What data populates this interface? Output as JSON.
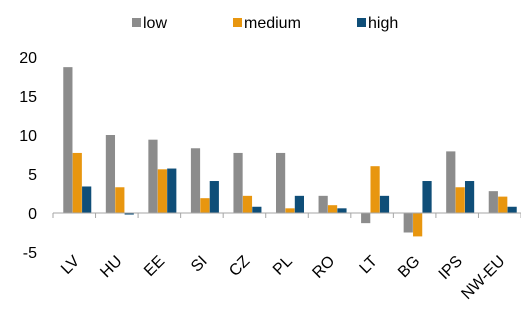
{
  "chart_data": {
    "type": "bar",
    "categories": [
      "LV",
      "HU",
      "EE",
      "SI",
      "CZ",
      "PL",
      "RO",
      "LT",
      "BG",
      "IPS",
      "NW-EU"
    ],
    "series": [
      {
        "name": "low",
        "color": "#8c8c8c",
        "values": [
          18.7,
          10.0,
          9.4,
          8.3,
          7.7,
          7.7,
          2.2,
          -1.3,
          -2.5,
          7.9,
          2.8
        ]
      },
      {
        "name": "medium",
        "color": "#e8960f",
        "values": [
          7.7,
          3.3,
          5.6,
          1.9,
          2.2,
          0.6,
          1.0,
          6.0,
          -3.0,
          3.3,
          2.1
        ]
      },
      {
        "name": "high",
        "color": "#0f4e78",
        "values": [
          3.4,
          -0.2,
          5.7,
          4.1,
          0.8,
          2.2,
          0.6,
          2.2,
          4.1,
          4.1,
          0.8
        ]
      }
    ],
    "ylim": [
      -5,
      20
    ],
    "yticks": [
      "-5",
      "0",
      "5",
      "10",
      "15",
      "20"
    ],
    "grid": false,
    "legend_position": "top"
  }
}
